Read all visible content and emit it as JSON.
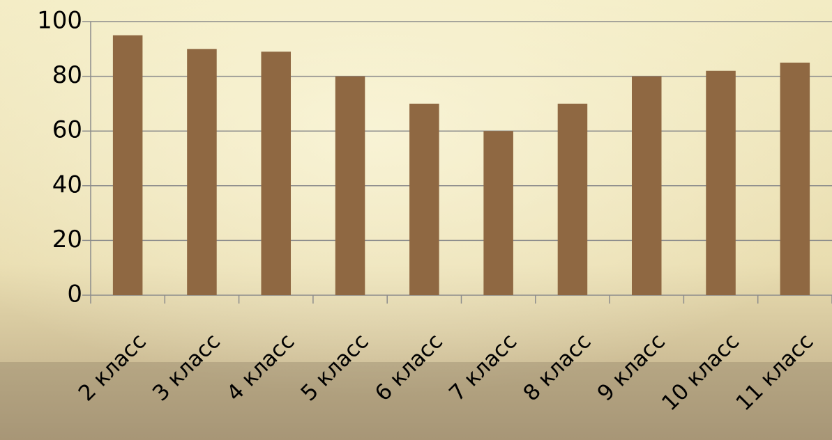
{
  "chart_data": {
    "type": "bar",
    "categories": [
      "2 класс",
      "3 класс",
      "4 класс",
      "5 класс",
      "6 класс",
      "7 класс",
      "8 класс",
      "9 класс",
      "10 класс",
      "11 класс"
    ],
    "values": [
      95,
      90,
      89,
      80,
      70,
      60,
      70,
      80,
      82,
      85
    ],
    "color": "#8f6842",
    "ylim": [
      0,
      100
    ],
    "yticks": [
      0,
      20,
      40,
      60,
      80,
      100
    ],
    "grid": true
  }
}
